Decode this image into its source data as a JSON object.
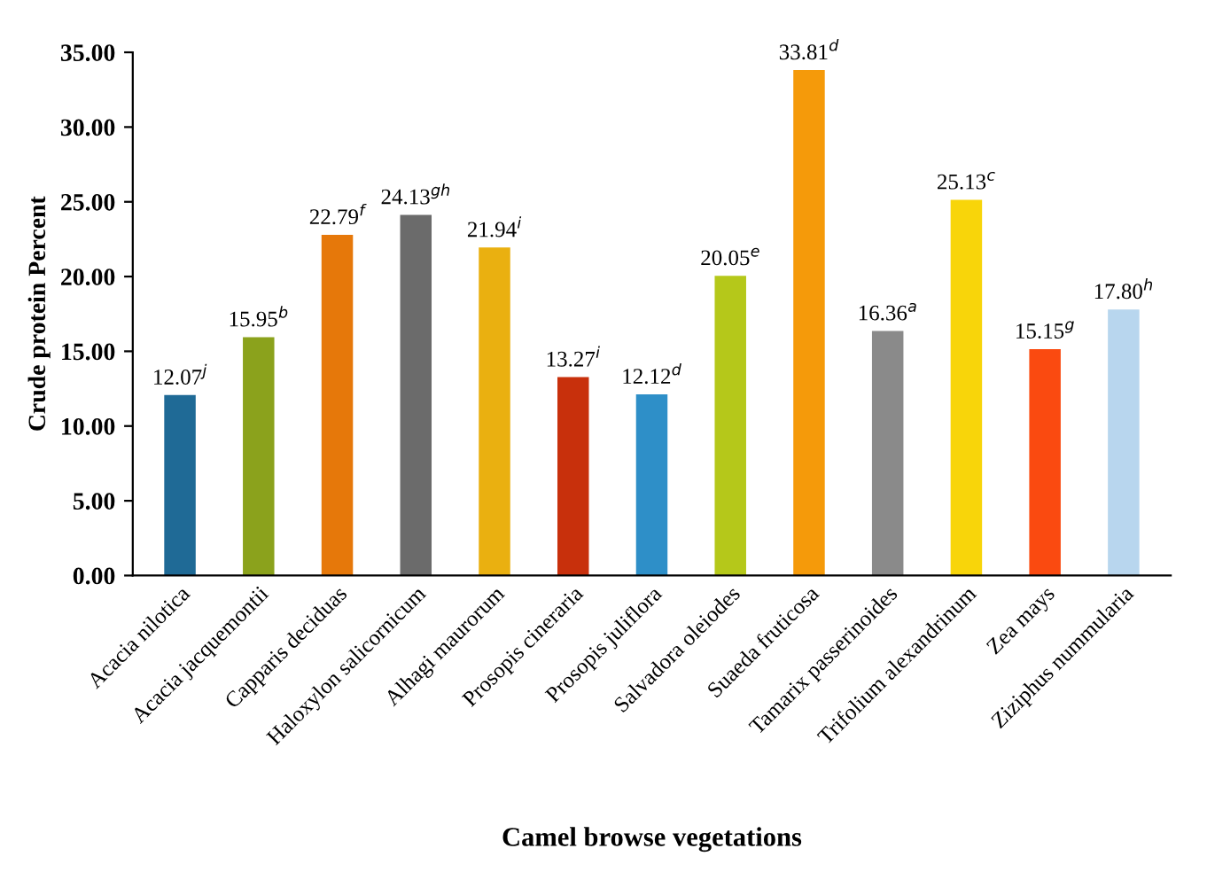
{
  "chart_data": {
    "type": "bar",
    "xlabel": "Camel browse vegetations",
    "ylabel": "Crude protein Percent",
    "categories": [
      "Acacia nilotica",
      "Acacia jacquemontii",
      "Capparis deciduas",
      "Haloxylon salicornicum",
      "Alhagi maurorum",
      "Prosopis cineraria",
      "Prosopis juliflora",
      "Salvadora oleiodes",
      "Suaeda fruticosa",
      "Tamarix passerinoides",
      "Trifolium alexandrinum",
      "Zea mays",
      "Ziziphus nummularia"
    ],
    "values": [
      12.07,
      15.95,
      22.79,
      24.13,
      21.94,
      13.27,
      12.12,
      20.05,
      33.81,
      16.36,
      25.13,
      15.15,
      17.8
    ],
    "value_labels": [
      "12.07$^{j}$",
      "15.95$^{b}$",
      "22.79$^{f}$",
      "24.13$^{gh}$",
      "21.94$^{i}$",
      "13.27$^{i}$",
      "12.12$^{d}$",
      "20.05$^{e}$",
      "33.81$^{d}$",
      "16.36$^{a}$",
      "25.13$^{c}$",
      "15.15$^{g}$",
      "17.80$^{h}$"
    ],
    "colors": [
      "#1f6a96",
      "#8ba21c",
      "#e6780a",
      "#6b6b6b",
      "#eab010",
      "#c8300c",
      "#2e8fc8",
      "#b5c81a",
      "#f59a0a",
      "#8a8a8a",
      "#f8d50a",
      "#fa4a10",
      "#b8d6ee"
    ],
    "ylim": [
      0,
      35
    ],
    "yticks": [
      {
        "value": 0,
        "label": "0.00"
      },
      {
        "value": 5,
        "label": "5.00"
      },
      {
        "value": 10,
        "label": "10.00"
      },
      {
        "value": 15,
        "label": "15.00"
      },
      {
        "value": 20,
        "label": "20.00"
      },
      {
        "value": 25,
        "label": "25.00"
      },
      {
        "value": 30,
        "label": "30.00"
      },
      {
        "value": 35,
        "label": "35.00"
      }
    ],
    "grid": false,
    "legend": false
  }
}
